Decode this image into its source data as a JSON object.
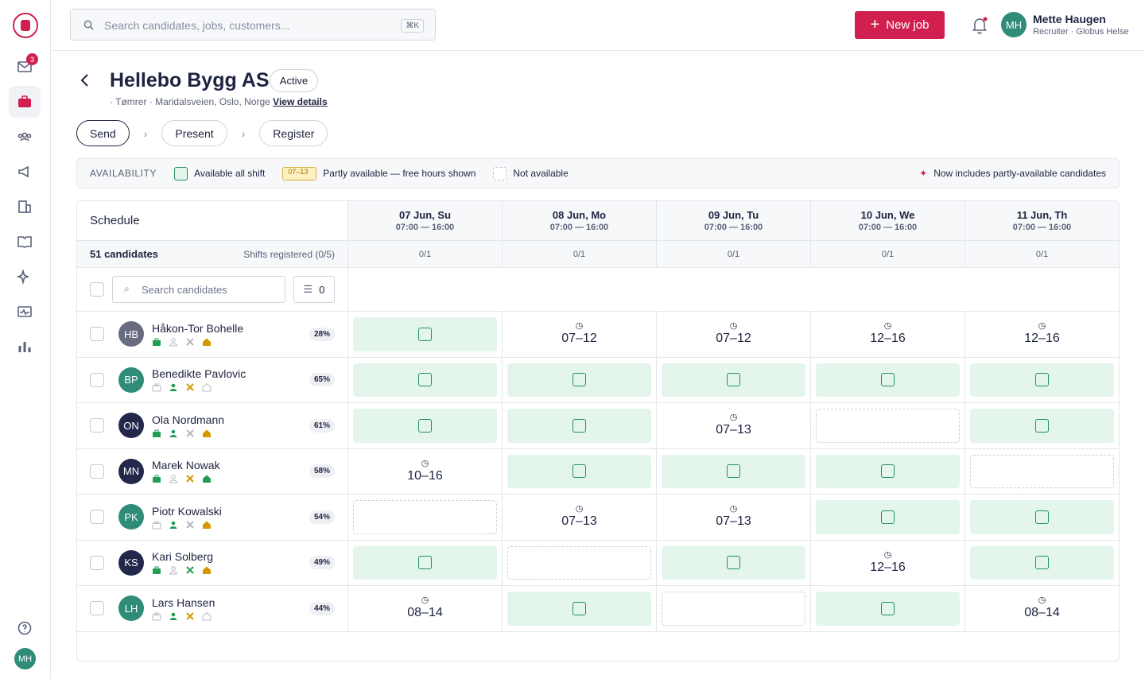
{
  "sidebar": {
    "mail_badge": "3",
    "avatar": "MH"
  },
  "search": {
    "placeholder": "Search candidates, jobs, customers...",
    "shortcut": "⌘K"
  },
  "header": {
    "new_job": "New job",
    "user": {
      "initials": "MH",
      "name": "Mette Haugen",
      "role": "Recruiter · Globus Helse"
    }
  },
  "job": {
    "title": "Hellebo Bygg AS",
    "status": "Active",
    "meta": "· Tømrer · Maridalsveien, Oslo, Norge",
    "link": "View details"
  },
  "steps": [
    "Send",
    "Present",
    "Register"
  ],
  "legend": {
    "label": "AVAILABILITY",
    "full": "Available all shift",
    "sample": "07–13",
    "partial": "Partly available — free hours shown",
    "none": "Not available",
    "note": "Now includes partly-available candidates"
  },
  "schedule": {
    "title": "Schedule",
    "count": "51 candidates",
    "shifts": "Shifts registered (0/5)",
    "search_placeholder": "Search candidates",
    "filter_count": "0",
    "days": [
      {
        "date": "07 Jun, Su",
        "time": "07:00 — 16:00",
        "registered": "0/1"
      },
      {
        "date": "08 Jun, Mo",
        "time": "07:00 — 16:00",
        "registered": "0/1"
      },
      {
        "date": "09 Jun, Tu",
        "time": "07:00 — 16:00",
        "registered": "0/1"
      },
      {
        "date": "10 Jun, We",
        "time": "07:00 — 16:00",
        "registered": "0/1"
      },
      {
        "date": "11 Jun, Th",
        "time": "07:00 — 16:00",
        "registered": "0/1"
      }
    ],
    "candidates": [
      {
        "initials": "HB",
        "color": "#686b82",
        "name": "Håkon-Tor Bohelle",
        "score": "28%",
        "tags": [
          "#1f9d55",
          null,
          null,
          "#d29a00"
        ],
        "cells": [
          {
            "status": "full"
          },
          {
            "status": "partial",
            "hours": "07–12"
          },
          {
            "status": "partial",
            "hours": "07–12"
          },
          {
            "status": "partial",
            "hours": "12–16"
          },
          {
            "status": "partial",
            "hours": "12–16"
          }
        ]
      },
      {
        "initials": "BP",
        "color": "#2f8c78",
        "name": "Benedikte Pavlovic",
        "score": "65%",
        "tags": [
          null,
          "#1f9d55",
          "#d29a00",
          null
        ],
        "cells": [
          {
            "status": "full"
          },
          {
            "status": "full"
          },
          {
            "status": "full"
          },
          {
            "status": "full"
          },
          {
            "status": "full"
          }
        ]
      },
      {
        "initials": "ON",
        "color": "#23284a",
        "name": "Ola Nordmann",
        "score": "61%",
        "tags": [
          "#1f9d55",
          "#1f9d55",
          null,
          "#d29a00"
        ],
        "cells": [
          {
            "status": "full"
          },
          {
            "status": "full"
          },
          {
            "status": "partial",
            "hours": "07–13"
          },
          {
            "status": "none"
          },
          {
            "status": "full"
          }
        ]
      },
      {
        "initials": "MN",
        "color": "#23284a",
        "name": "Marek Nowak",
        "score": "58%",
        "tags": [
          "#1f9d55",
          null,
          "#d29a00",
          "#1f9d55"
        ],
        "cells": [
          {
            "status": "partial",
            "hours": "10–16"
          },
          {
            "status": "full"
          },
          {
            "status": "full"
          },
          {
            "status": "full"
          },
          {
            "status": "none"
          }
        ]
      },
      {
        "initials": "PK",
        "color": "#2f8c78",
        "name": "Piotr Kowalski",
        "score": "54%",
        "tags": [
          null,
          "#1f9d55",
          null,
          "#d29a00"
        ],
        "cells": [
          {
            "status": "none"
          },
          {
            "status": "partial",
            "hours": "07–13"
          },
          {
            "status": "partial",
            "hours": "07–13"
          },
          {
            "status": "full"
          },
          {
            "status": "full"
          }
        ]
      },
      {
        "initials": "KS",
        "color": "#23284a",
        "name": "Kari Solberg",
        "score": "49%",
        "tags": [
          "#1f9d55",
          null,
          "#1f9d55",
          "#d29a00"
        ],
        "cells": [
          {
            "status": "full"
          },
          {
            "status": "none"
          },
          {
            "status": "full"
          },
          {
            "status": "partial",
            "hours": "12–16"
          },
          {
            "status": "full"
          }
        ]
      },
      {
        "initials": "LH",
        "color": "#2f8c78",
        "name": "Lars Hansen",
        "score": "44%",
        "tags": [
          null,
          "#1f9d55",
          "#d29a00",
          null
        ],
        "cells": [
          {
            "status": "partial",
            "hours": "08–14"
          },
          {
            "status": "full"
          },
          {
            "status": "none"
          },
          {
            "status": "full"
          },
          {
            "status": "partial",
            "hours": "08–14"
          }
        ]
      }
    ]
  }
}
